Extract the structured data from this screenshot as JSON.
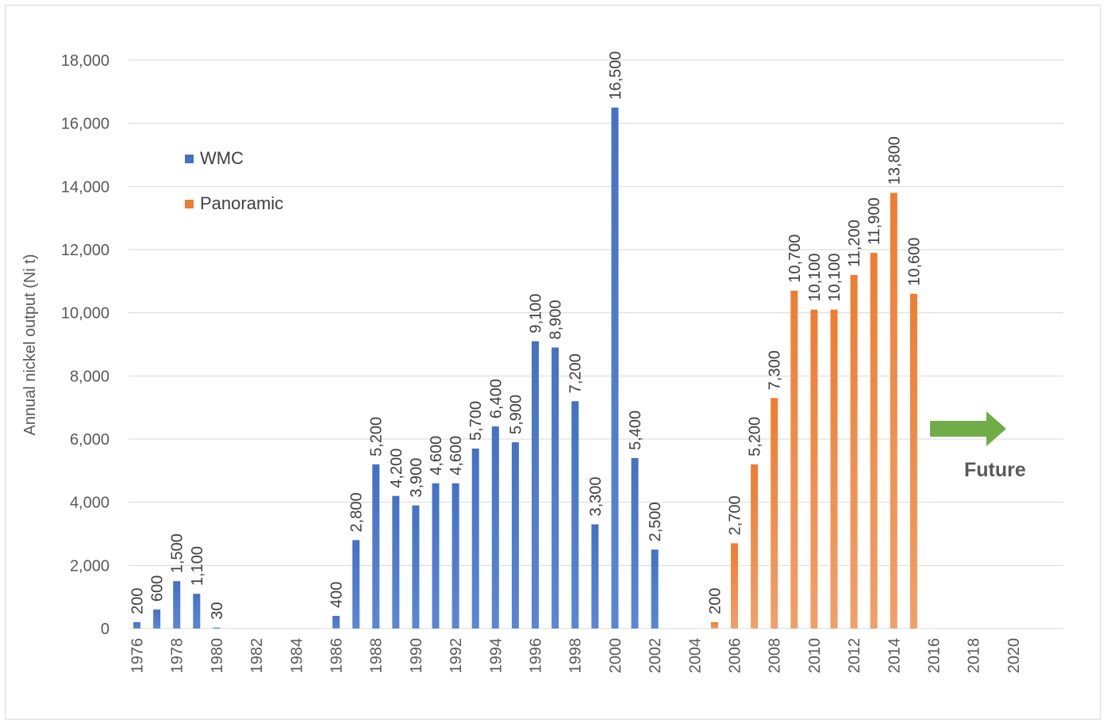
{
  "chart_data": {
    "type": "bar",
    "title": "",
    "xlabel": "",
    "ylabel": "Annual nickel output (Ni t)",
    "ylim": [
      0,
      18000
    ],
    "yticks": [
      0,
      2000,
      4000,
      6000,
      8000,
      10000,
      12000,
      14000,
      16000,
      18000
    ],
    "ytick_labels": [
      "0",
      "2,000",
      "4,000",
      "6,000",
      "8,000",
      "10,000",
      "12,000",
      "14,000",
      "16,000",
      "18,000"
    ],
    "xticks": [
      "1976",
      "1978",
      "1980",
      "1982",
      "1984",
      "1986",
      "1988",
      "1990",
      "1992",
      "1994",
      "1996",
      "1998",
      "2000",
      "2002",
      "2004",
      "2006",
      "2008",
      "2010",
      "2012",
      "2014",
      "2016",
      "2018",
      "2020"
    ],
    "grid": true,
    "legend_position": "left",
    "series": [
      {
        "name": "WMC",
        "color": "#4472c4",
        "points": [
          {
            "year": 1976,
            "value": 200,
            "label": "200"
          },
          {
            "year": 1977,
            "value": 600,
            "label": "600"
          },
          {
            "year": 1978,
            "value": 1500,
            "label": "1,500"
          },
          {
            "year": 1979,
            "value": 1100,
            "label": "1,100"
          },
          {
            "year": 1980,
            "value": 30,
            "label": "30"
          },
          {
            "year": 1986,
            "value": 400,
            "label": "400"
          },
          {
            "year": 1987,
            "value": 2800,
            "label": "2,800"
          },
          {
            "year": 1988,
            "value": 5200,
            "label": "5,200"
          },
          {
            "year": 1989,
            "value": 4200,
            "label": "4,200"
          },
          {
            "year": 1990,
            "value": 3900,
            "label": "3,900"
          },
          {
            "year": 1991,
            "value": 4600,
            "label": "4,600"
          },
          {
            "year": 1992,
            "value": 4600,
            "label": "4,600"
          },
          {
            "year": 1993,
            "value": 5700,
            "label": "5,700"
          },
          {
            "year": 1994,
            "value": 6400,
            "label": "6,400"
          },
          {
            "year": 1995,
            "value": 5900,
            "label": "5,900"
          },
          {
            "year": 1996,
            "value": 9100,
            "label": "9,100"
          },
          {
            "year": 1997,
            "value": 8900,
            "label": "8,900"
          },
          {
            "year": 1998,
            "value": 7200,
            "label": "7,200"
          },
          {
            "year": 1999,
            "value": 3300,
            "label": "3,300"
          },
          {
            "year": 2000,
            "value": 16500,
            "label": "16,500"
          },
          {
            "year": 2001,
            "value": 5400,
            "label": "5,400"
          },
          {
            "year": 2002,
            "value": 2500,
            "label": "2,500"
          }
        ]
      },
      {
        "name": "Panoramic",
        "color": "#ed7d31",
        "points": [
          {
            "year": 2005,
            "value": 200,
            "label": "200"
          },
          {
            "year": 2006,
            "value": 2700,
            "label": "2,700"
          },
          {
            "year": 2007,
            "value": 5200,
            "label": "5,200"
          },
          {
            "year": 2008,
            "value": 7300,
            "label": "7,300"
          },
          {
            "year": 2009,
            "value": 10700,
            "label": "10,700"
          },
          {
            "year": 2010,
            "value": 10100,
            "label": "10,100"
          },
          {
            "year": 2011,
            "value": 10100,
            "label": "10,100"
          },
          {
            "year": 2012,
            "value": 11200,
            "label": "11,200"
          },
          {
            "year": 2013,
            "value": 11900,
            "label": "11,900"
          },
          {
            "year": 2014,
            "value": 13800,
            "label": "13,800"
          },
          {
            "year": 2015,
            "value": 10600,
            "label": "10,600"
          }
        ]
      }
    ],
    "annotations": [
      {
        "text": "Future",
        "type": "arrow",
        "color": "#70ad47"
      }
    ]
  }
}
